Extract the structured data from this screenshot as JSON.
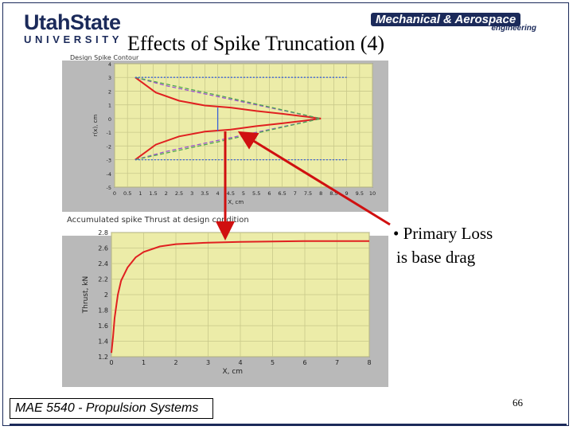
{
  "slide": {
    "title": "Effects of Spike Truncation (4)",
    "logo_left_main": "UtahState",
    "logo_left_sub": "UNIVERSITY",
    "logo_right_main": "Mechanical & Aerospace",
    "logo_right_sub": "engineering",
    "bullet_line1": "• Primary Loss",
    "bullet_line2": "is base drag",
    "footer": "MAE 5540 - Propulsion Systems",
    "page_number": "66"
  },
  "colors": {
    "navy": "#1b2a5a",
    "plot_bg": "#ececa8",
    "panel_bg": "#b9b9b9",
    "red": "#e02020",
    "arrow": "#d01010"
  },
  "chart_data": [
    {
      "type": "line",
      "title": "Design Spike Contour",
      "xlabel": "X, cm",
      "ylabel": "r(x), cm",
      "xlim": [
        0,
        10
      ],
      "ylim": [
        -5,
        4
      ],
      "x_ticks": [
        "0",
        "0.5",
        "1",
        "1.5",
        "2",
        "2.5",
        "3",
        "3.5",
        "4",
        "4.5",
        "5",
        "5.5",
        "6",
        "6.5",
        "7",
        "7.5",
        "8",
        "8.5",
        "9",
        "9.5",
        "10"
      ],
      "y_ticks": [
        "4",
        "3",
        "2",
        "1",
        "0",
        "-1",
        "-2",
        "-3",
        "-4",
        "-5"
      ],
      "grid": true,
      "series": [
        {
          "color": "#e02020",
          "x": [
            0.8,
            1.6,
            2.5,
            3.5,
            4.5,
            5.5,
            6.5,
            7.5,
            8.0
          ],
          "y": [
            3.0,
            1.9,
            1.3,
            0.95,
            0.8,
            0.55,
            0.35,
            0.12,
            0.0
          ]
        },
        {
          "color": "#e02020",
          "x": [
            0.8,
            1.6,
            2.5,
            3.5,
            4.5,
            5.5,
            6.5,
            7.5,
            8.0
          ],
          "y": [
            -3.0,
            -1.9,
            -1.3,
            -0.95,
            -0.8,
            -0.55,
            -0.35,
            -0.12,
            0.0
          ]
        },
        {
          "color": "#9b4fd1",
          "x": [
            0.8,
            2.0,
            4.0,
            6.0,
            8.0
          ],
          "y": [
            3.0,
            2.4,
            1.6,
            0.8,
            0.0
          ]
        },
        {
          "color": "#9b4fd1",
          "x": [
            0.8,
            2.0,
            4.0,
            6.0,
            8.0
          ],
          "y": [
            -3.0,
            -2.4,
            -1.6,
            -0.8,
            0.0
          ]
        },
        {
          "color": "#4fa84f",
          "x": [
            0.8,
            4.0,
            8.0
          ],
          "y": [
            3.0,
            1.7,
            0.0
          ]
        },
        {
          "color": "#4fa84f",
          "x": [
            0.8,
            4.0,
            8.0
          ],
          "y": [
            -3.0,
            -1.7,
            0.0
          ]
        },
        {
          "color": "#3a62d6",
          "x": [
            0.8,
            9.0
          ],
          "y": [
            3.0,
            3.0
          ]
        },
        {
          "color": "#3a62d6",
          "x": [
            0.8,
            9.0
          ],
          "y": [
            -3.0,
            -3.0
          ]
        },
        {
          "color": "#3a62d6",
          "x": [
            4.0,
            4.0
          ],
          "y": [
            -0.9,
            0.8
          ]
        }
      ]
    },
    {
      "type": "line",
      "title": "Accumulated spike Thrust at design condition",
      "xlabel": "X, cm",
      "ylabel": "Thrust, kN",
      "xlim": [
        0,
        8
      ],
      "ylim": [
        1.2,
        2.8
      ],
      "x_ticks": [
        "0",
        "1",
        "2",
        "3",
        "4",
        "5",
        "6",
        "7",
        "8"
      ],
      "y_ticks": [
        "2.8",
        "2.6",
        "2.4",
        "2.2",
        "2",
        "1.8",
        "1.6",
        "1.4",
        "1.2"
      ],
      "grid": true,
      "series": [
        {
          "color": "#e02020",
          "x": [
            0.0,
            0.05,
            0.1,
            0.2,
            0.3,
            0.5,
            0.75,
            1.0,
            1.5,
            2.0,
            3.0,
            4.0,
            5.0,
            6.0,
            7.0,
            8.0
          ],
          "y": [
            1.25,
            1.45,
            1.7,
            2.0,
            2.18,
            2.35,
            2.48,
            2.55,
            2.62,
            2.65,
            2.67,
            2.68,
            2.685,
            2.69,
            2.69,
            2.69
          ]
        }
      ]
    }
  ]
}
